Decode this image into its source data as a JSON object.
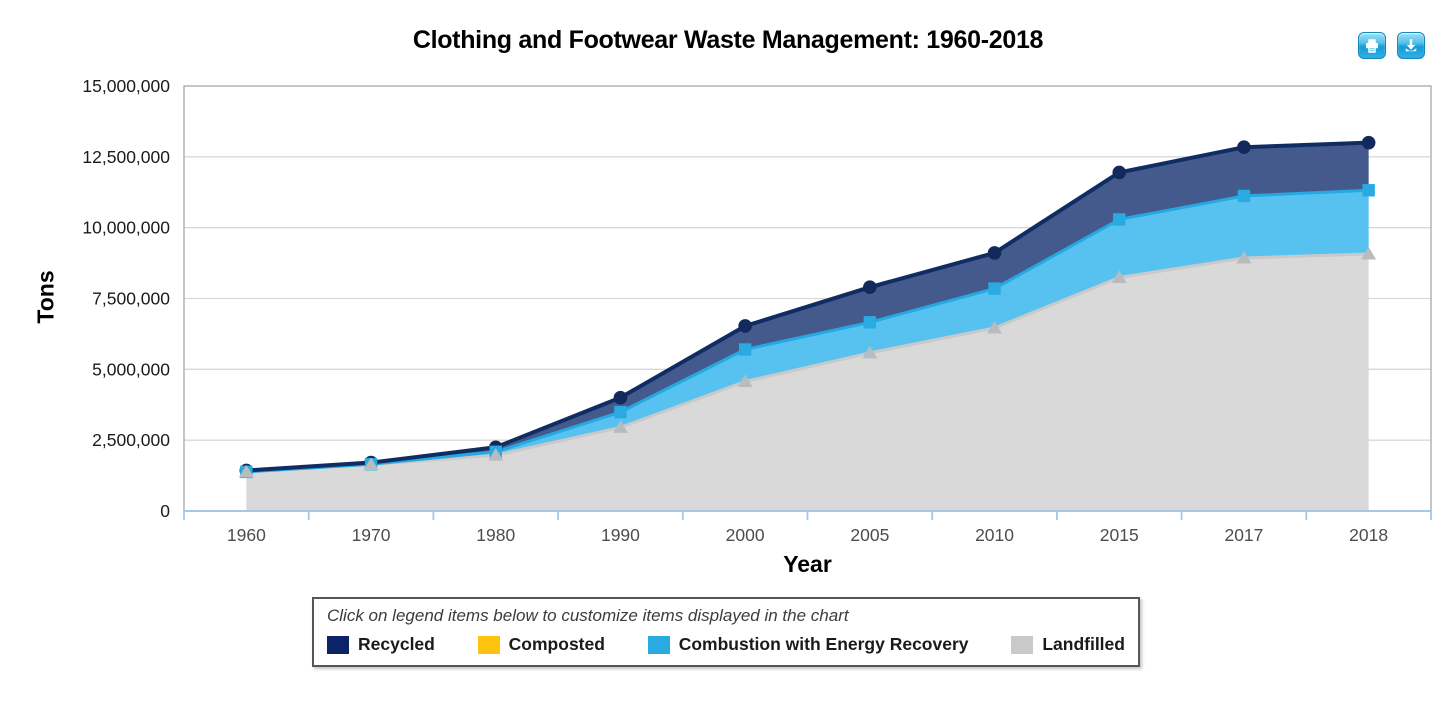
{
  "title": "Clothing and Footwear Waste Management: 1960-2018",
  "toolbar": {
    "icons": [
      {
        "name": "print-icon"
      },
      {
        "name": "download-icon"
      }
    ]
  },
  "chart_data": {
    "type": "area",
    "stacked": true,
    "title": "Clothing and Footwear Waste Management: 1960-2018",
    "xlabel": "Year",
    "ylabel": "Tons",
    "ylim": [
      0,
      15000000
    ],
    "yticks": [
      0,
      2500000,
      5000000,
      7500000,
      10000000,
      12500000,
      15000000
    ],
    "ytick_labels": [
      "0",
      "2,500,000",
      "5,000,000",
      "7,500,000",
      "10,000,000",
      "12,500,000",
      "15,000,000"
    ],
    "grid": "horizontal",
    "categories": [
      "1960",
      "1970",
      "1980",
      "1990",
      "2000",
      "2005",
      "2010",
      "2015",
      "2017",
      "2018"
    ],
    "series": [
      {
        "name": "Landfilled",
        "marker": "triangle",
        "fill": "#d9d9d9",
        "line": "#c9c9c9",
        "marker_color": "#b9bcbf",
        "line_width": 3,
        "values": [
          1380000,
          1640000,
          1970000,
          2950000,
          4570000,
          5580000,
          6460000,
          8240000,
          8930000,
          9070000
        ]
      },
      {
        "name": "Combustion with Energy Recovery",
        "marker": "square",
        "fill": "#57c2f0",
        "line": "#25a9e0",
        "marker_color": "#29abe2",
        "line_width": 3,
        "values": [
          0,
          10000,
          120000,
          540000,
          1130000,
          1080000,
          1390000,
          2050000,
          2190000,
          2250000
        ]
      },
      {
        "name": "Composted",
        "marker": "none",
        "fill": "#ffc20e",
        "line": "#ffc20e",
        "marker_color": "#ffc20e",
        "line_width": 3,
        "values": [
          0,
          0,
          0,
          0,
          0,
          0,
          0,
          0,
          0,
          0
        ]
      },
      {
        "name": "Recycled",
        "marker": "circle",
        "fill": "#44598c",
        "line": "#0f2c63",
        "marker_color": "#13295c",
        "line_width": 4,
        "values": [
          50000,
          60000,
          160000,
          510000,
          830000,
          1240000,
          1260000,
          1660000,
          1720000,
          1680000
        ]
      }
    ],
    "legend": {
      "position": "bottom",
      "hint": "Click on legend items below to customize items displayed in the chart",
      "items": [
        {
          "label": "Recycled",
          "color": "#0c2467"
        },
        {
          "label": "Composted",
          "color": "#ffc20e"
        },
        {
          "label": "Combustion with Energy Recovery",
          "color": "#29abe2"
        },
        {
          "label": "Landfilled",
          "color": "#c9c9c9"
        }
      ]
    },
    "frame_color": "#b3b3b3",
    "gridline_color": "#d8d8d8",
    "axisline_color": "#a9c7e3",
    "ytick_label_color": "#1a1a1a",
    "xtick_label_color": "#4d4d4d"
  }
}
